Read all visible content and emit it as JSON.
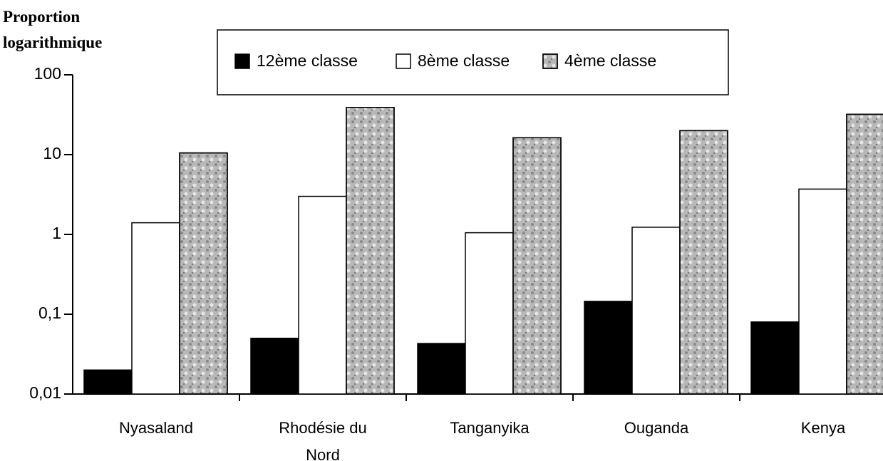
{
  "chart_data": {
    "type": "bar",
    "y_label": "Proportion logarithmique",
    "categories": [
      "Nyasaland",
      "Rhodésie du Nord",
      "Tanganyika",
      "Ouganda",
      "Kenya"
    ],
    "series": [
      {
        "name": "12ème classe",
        "color": "#000000",
        "values": [
          0.02,
          0.05,
          0.043,
          0.145,
          0.08
        ]
      },
      {
        "name": "8ème classe",
        "color": "#ffffff",
        "values": [
          1.4,
          3,
          1.05,
          1.23,
          3.7
        ]
      },
      {
        "name": "4ème classe",
        "color": "#b8b8b8",
        "values": [
          10.5,
          39,
          16.3,
          20,
          32
        ]
      }
    ],
    "log_scale": true,
    "ylim": [
      0.01,
      100
    ],
    "yticks": [
      {
        "value": 0.01,
        "label": "0,01"
      },
      {
        "value": 0.1,
        "label": "0,1"
      },
      1,
      10,
      100
    ],
    "legend": "top"
  }
}
